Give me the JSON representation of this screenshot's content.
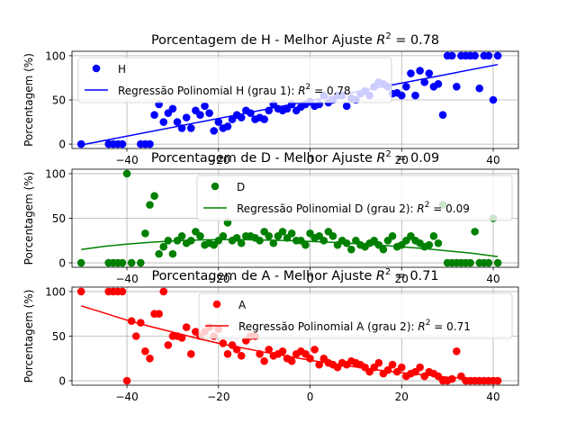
{
  "chart_data": [
    {
      "type": "scatter",
      "title": "Porcentagem de H - Melhor Ajuste R² = 0.78",
      "title_parts": [
        "Porcentagem de H - Melhor Ajuste ",
        "R",
        "2",
        " = 0.78"
      ],
      "ylabel": "Porcentagem (%)",
      "xlabel": "",
      "xlim": [
        -52,
        45.5
      ],
      "ylim": [
        -5,
        105
      ],
      "xticks": [
        -40,
        -20,
        0,
        20,
        40
      ],
      "xtick_labels": [
        "−40",
        "−20",
        "0",
        "20",
        "40"
      ],
      "yticks": [
        0,
        50,
        100
      ],
      "ytick_labels": [
        "0",
        "50",
        "100"
      ],
      "grid": true,
      "legend_position": "upper-left",
      "color": "#0000ff",
      "series": [
        {
          "name": "H",
          "kind": "points",
          "x": [
            -50,
            -44,
            -43,
            -42,
            -41,
            -37,
            -36,
            -35,
            -34,
            -33,
            -32,
            -31,
            -30,
            -29,
            -28,
            -27,
            -26,
            -25,
            -24,
            -23,
            -22,
            -21,
            -20,
            -19,
            -18,
            -17,
            -16,
            -15,
            -14,
            -13,
            -12,
            -11,
            -10,
            -9,
            -8,
            -7,
            -6,
            -5,
            -4,
            -3,
            -2,
            -1,
            0,
            1,
            2,
            3,
            4,
            5,
            6,
            7,
            8,
            9,
            10,
            11,
            12,
            13,
            14,
            15,
            16,
            17,
            18,
            19,
            20,
            21,
            22,
            23,
            24,
            25,
            26,
            27,
            28,
            29,
            30,
            31,
            32,
            33,
            34,
            35,
            36,
            37,
            38,
            39,
            40,
            41
          ],
          "y": [
            0,
            0,
            0,
            0,
            0,
            0,
            0,
            0,
            33,
            45,
            25,
            35,
            40,
            25,
            18,
            30,
            18,
            38,
            33,
            43,
            35,
            15,
            25,
            18,
            20,
            28,
            33,
            30,
            38,
            35,
            28,
            30,
            28,
            38,
            45,
            40,
            38,
            40,
            45,
            38,
            42,
            45,
            48,
            43,
            45,
            55,
            47,
            50,
            55,
            55,
            43,
            52,
            50,
            57,
            60,
            55,
            65,
            70,
            68,
            65,
            57,
            58,
            55,
            65,
            80,
            55,
            83,
            70,
            80,
            65,
            68,
            33,
            100,
            100,
            65,
            100,
            100,
            100,
            100,
            63,
            100,
            100,
            50,
            100
          ]
        },
        {
          "name": "Regressão Polinomial H (grau 1): R² = 0.78",
          "label_parts": [
            "Regressão Polinomial H (grau 1): ",
            "R",
            "2",
            " = 0.78"
          ],
          "kind": "line",
          "x": [
            -50,
            41
          ],
          "y": [
            -1,
            90
          ]
        }
      ]
    },
    {
      "type": "scatter",
      "title": "Porcentagem de D - Melhor Ajuste R² = 0.09",
      "title_parts": [
        "Porcentagem de D - Melhor Ajuste ",
        "R",
        "2",
        " = 0.09"
      ],
      "ylabel": "Porcentagem (%)",
      "xlabel": "",
      "xlim": [
        -52,
        45.5
      ],
      "ylim": [
        -5,
        105
      ],
      "xticks": [
        -40,
        -20,
        0,
        20,
        40
      ],
      "xtick_labels": [
        "−40",
        "−20",
        "0",
        "20",
        "40"
      ],
      "yticks": [
        0,
        50,
        100
      ],
      "ytick_labels": [
        "0",
        "50",
        "100"
      ],
      "grid": true,
      "legend_position": "upper-right",
      "color": "#008000",
      "series": [
        {
          "name": "D",
          "kind": "points",
          "x": [
            -50,
            -44,
            -43,
            -42,
            -41,
            -40,
            -39,
            -37,
            -36,
            -35,
            -34,
            -33,
            -32,
            -31,
            -30,
            -29,
            -28,
            -27,
            -26,
            -25,
            -24,
            -23,
            -22,
            -21,
            -20,
            -19,
            -18,
            -17,
            -16,
            -15,
            -14,
            -13,
            -12,
            -11,
            -10,
            -9,
            -8,
            -7,
            -6,
            -5,
            -4,
            -3,
            -2,
            -1,
            0,
            1,
            2,
            3,
            4,
            5,
            6,
            7,
            8,
            9,
            10,
            11,
            12,
            13,
            14,
            15,
            16,
            17,
            18,
            19,
            20,
            21,
            22,
            23,
            24,
            25,
            26,
            27,
            28,
            29,
            30,
            31,
            32,
            33,
            34,
            35,
            36,
            37,
            38,
            39,
            40,
            41
          ],
          "y": [
            0,
            0,
            0,
            0,
            0,
            100,
            0,
            0,
            33,
            65,
            75,
            10,
            18,
            25,
            10,
            25,
            30,
            22,
            25,
            35,
            30,
            20,
            22,
            20,
            25,
            30,
            45,
            25,
            28,
            22,
            30,
            30,
            28,
            25,
            35,
            30,
            22,
            30,
            35,
            28,
            33,
            25,
            25,
            20,
            33,
            28,
            30,
            25,
            35,
            30,
            20,
            25,
            22,
            15,
            25,
            20,
            18,
            22,
            25,
            20,
            15,
            25,
            30,
            18,
            20,
            25,
            30,
            25,
            22,
            18,
            20,
            30,
            22,
            65,
            0,
            0,
            0,
            0,
            0,
            0,
            35,
            0,
            0,
            0,
            50,
            0
          ]
        },
        {
          "name": "Regressão Polinomial D (grau 2): R² = 0.09",
          "label_parts": [
            "Regressão Polinomial D (grau 2): ",
            "R",
            "2",
            " = 0.09"
          ],
          "kind": "line",
          "x": [
            -50,
            -45,
            -40,
            -35,
            -30,
            -25,
            -20,
            -15,
            -10,
            -5,
            0,
            5,
            10,
            15,
            20,
            25,
            30,
            35,
            41
          ],
          "y": [
            15,
            18.5,
            21,
            23,
            24.5,
            25.5,
            26,
            26,
            25.5,
            25,
            24,
            23,
            21.5,
            20,
            18,
            16,
            13.5,
            11,
            7
          ]
        }
      ]
    },
    {
      "type": "scatter",
      "title": "Porcentagem de A - Melhor Ajuste R² = 0.71",
      "title_parts": [
        "Porcentagem de A - Melhor Ajuste ",
        "R",
        "2",
        " = 0.71"
      ],
      "ylabel": "Porcentagem (%)",
      "xlabel": "",
      "xlim": [
        -52,
        45.5
      ],
      "ylim": [
        -5,
        105
      ],
      "xticks": [
        -40,
        -20,
        0,
        20,
        40
      ],
      "xtick_labels": [
        "−40",
        "−20",
        "0",
        "20",
        "40"
      ],
      "yticks": [
        0,
        50,
        100
      ],
      "ytick_labels": [
        "0",
        "50",
        "100"
      ],
      "grid": true,
      "legend_position": "upper-right",
      "color": "#ff0000",
      "series": [
        {
          "name": "A",
          "kind": "points",
          "x": [
            -50,
            -44,
            -43,
            -42,
            -41,
            -40,
            -39,
            -38,
            -37,
            -36,
            -35,
            -34,
            -33,
            -32,
            -31,
            -30,
            -29,
            -28,
            -27,
            -26,
            -25,
            -24,
            -23,
            -22,
            -21,
            -20,
            -19,
            -18,
            -17,
            -16,
            -15,
            -14,
            -13,
            -12,
            -11,
            -10,
            -9,
            -8,
            -7,
            -6,
            -5,
            -4,
            -3,
            -2,
            -1,
            0,
            1,
            2,
            3,
            4,
            5,
            6,
            7,
            8,
            9,
            10,
            11,
            12,
            13,
            14,
            15,
            16,
            17,
            18,
            19,
            20,
            21,
            22,
            23,
            24,
            25,
            26,
            27,
            28,
            29,
            30,
            31,
            32,
            33,
            34,
            35,
            36,
            37,
            38,
            39,
            40,
            41
          ],
          "y": [
            100,
            100,
            100,
            100,
            100,
            0,
            67,
            50,
            65,
            33,
            25,
            75,
            75,
            100,
            40,
            50,
            50,
            48,
            60,
            30,
            55,
            50,
            55,
            60,
            50,
            58,
            42,
            30,
            40,
            35,
            28,
            45,
            50,
            50,
            30,
            22,
            35,
            28,
            30,
            33,
            25,
            22,
            30,
            33,
            30,
            25,
            35,
            18,
            25,
            20,
            18,
            15,
            20,
            18,
            22,
            20,
            18,
            15,
            10,
            15,
            20,
            8,
            12,
            18,
            10,
            15,
            5,
            8,
            10,
            15,
            5,
            10,
            8,
            5,
            0,
            0,
            2,
            33,
            5,
            0,
            0,
            0,
            0,
            0,
            0,
            0,
            0
          ]
        },
        {
          "name": "Regressão Polinomial A (grau 2): R² = 0.71",
          "label_parts": [
            "Regressão Polinomial A (grau 2): ",
            "R",
            "2",
            " = 0.71"
          ],
          "kind": "line",
          "x": [
            -50,
            -45,
            -40,
            -35,
            -30,
            -25,
            -20,
            -15,
            -10,
            -5,
            0,
            5,
            10,
            15,
            20,
            25,
            30,
            35,
            41
          ],
          "y": [
            84,
            76,
            68,
            61,
            54.5,
            48,
            42,
            37,
            32,
            27.5,
            23,
            19,
            15.5,
            12,
            9,
            6.5,
            4,
            2.5,
            1
          ]
        }
      ]
    }
  ]
}
